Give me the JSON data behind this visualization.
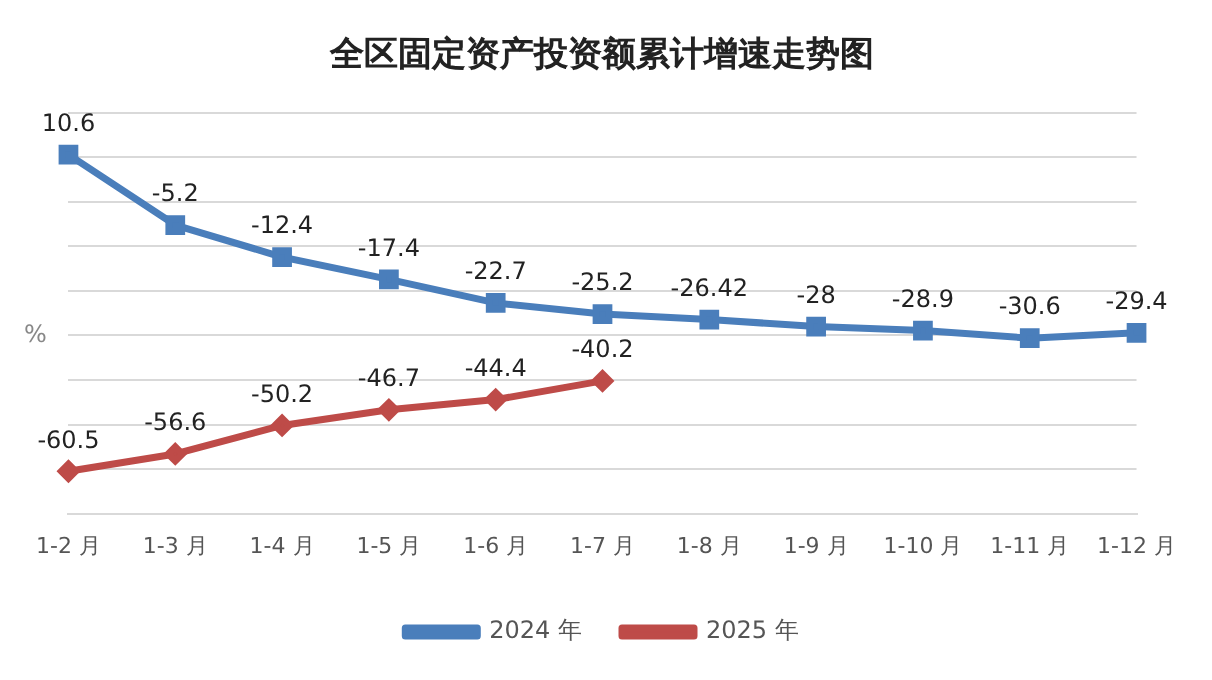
{
  "chart_data": {
    "type": "line",
    "title": "全区固定资产投资额累计增速走势图",
    "ylabel": "%",
    "categories": [
      "1-2 月",
      "1-3 月",
      "1-4 月",
      "1-5 月",
      "1-6 月",
      "1-7 月",
      "1-8 月",
      "1-9 月",
      "1-10 月",
      "1-11 月",
      "1-12 月"
    ],
    "series": [
      {
        "name": "2024 年",
        "color": "#4a7ebb",
        "marker": "square",
        "values": [
          10.6,
          -5.2,
          -12.4,
          -17.4,
          -22.7,
          -25.2,
          -26.42,
          -28,
          -28.9,
          -30.6,
          -29.4
        ]
      },
      {
        "name": "2025 年",
        "color": "#be4b48",
        "marker": "diamond",
        "values": [
          -60.5,
          -56.6,
          -50.2,
          -46.7,
          -44.4,
          -40.2,
          null,
          null,
          null,
          null,
          null
        ]
      }
    ],
    "ylim": [
      -70,
      20
    ],
    "yticks": [
      -70,
      -60,
      -50,
      -40,
      -30,
      -20,
      -10,
      0,
      10,
      20
    ],
    "tick_labels": "x",
    "grid": "y",
    "legend": "bottom",
    "data_labels": true
  }
}
